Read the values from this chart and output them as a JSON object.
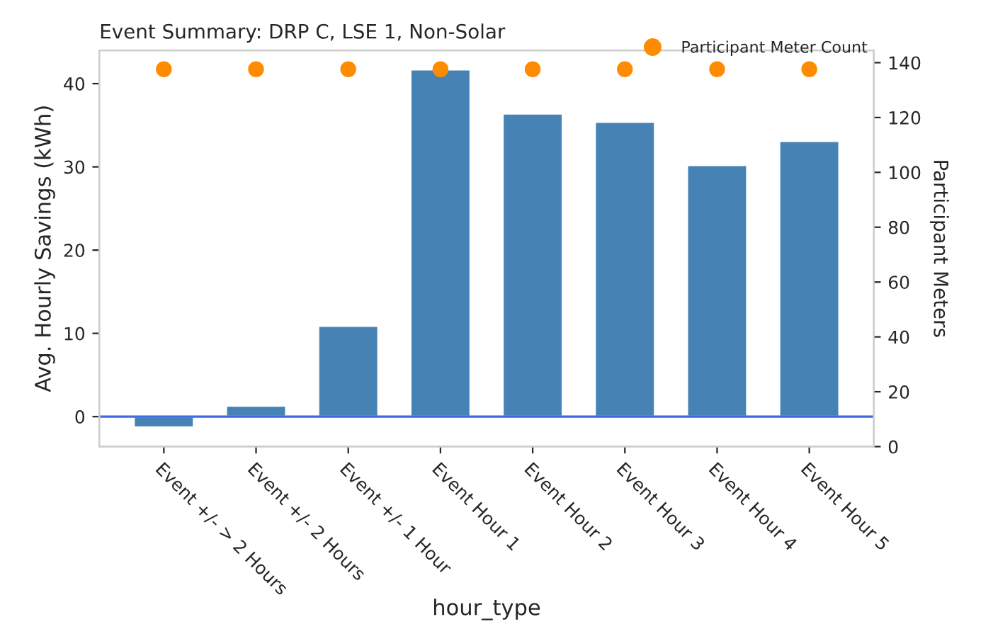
{
  "chart_data": {
    "type": "bar",
    "title": "Event Summary: DRP C, LSE 1, Non-Solar",
    "xlabel": "hour_type",
    "ylabel": "Avg. Hourly Savings (kWh)",
    "y2label": "Participant Meters",
    "categories": [
      "Event +/- > 2 Hours",
      "Event +/- 2 Hours",
      "Event +/- 1 Hour",
      "Event Hour 1",
      "Event Hour 2",
      "Event Hour 3",
      "Event Hour 4",
      "Event Hour 5"
    ],
    "series": [
      {
        "color": "#4682b4",
        "values": [
          -1.3,
          1.3,
          10.9,
          41.7,
          36.4,
          35.4,
          30.2,
          33.1
        ]
      },
      {
        "type": "scatter",
        "name": "Participant Meter Count",
        "axis": "y2",
        "color": "#ff8c00",
        "marker": "circle",
        "values": [
          137.6,
          137.6,
          137.6,
          137.6,
          137.6,
          137.6,
          137.6,
          137.6
        ]
      }
    ],
    "ylim": [
      -3.6,
      44
    ],
    "yticks": [
      0,
      10,
      20,
      30,
      40
    ],
    "y2lim": [
      0,
      144.5
    ],
    "y2ticks": [
      0,
      20,
      40,
      60,
      80,
      100,
      120,
      140
    ],
    "ref_lines": [
      {
        "axis": "y",
        "value": 0,
        "color": "#4169e1"
      }
    ],
    "legend": "top right",
    "grid": false
  }
}
